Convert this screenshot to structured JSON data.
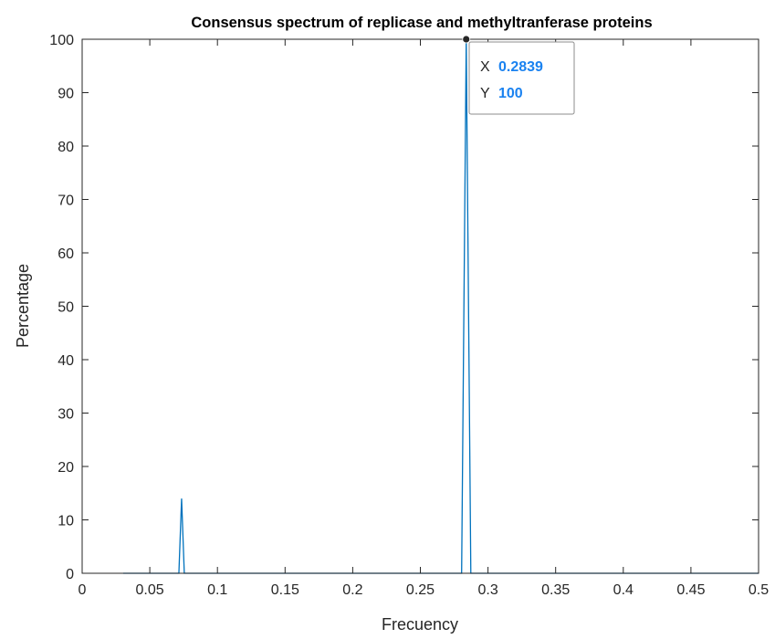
{
  "chart_data": {
    "type": "line",
    "title": "Consensus spectrum of replicase and methyltranferase proteins",
    "xlabel": "Frecuency",
    "ylabel": "Percentage",
    "xlim": [
      0,
      0.5
    ],
    "ylim": [
      0,
      100
    ],
    "xticks": [
      "0",
      "0.05",
      "0.1",
      "0.15",
      "0.2",
      "0.25",
      "0.3",
      "0.35",
      "0.4",
      "0.45",
      "0.5"
    ],
    "yticks": [
      "0",
      "10",
      "20",
      "30",
      "40",
      "50",
      "60",
      "70",
      "80",
      "90",
      "100"
    ],
    "grid": false,
    "series": [
      {
        "color": "#0072bd",
        "x": [
          0.0303,
          0.0715,
          0.0735,
          0.0755,
          0.2805,
          0.2839,
          0.2873,
          0.5
        ],
        "y": [
          0,
          0,
          14,
          0,
          0,
          100,
          0,
          0
        ]
      }
    ],
    "datatip": {
      "x_label": "X",
      "x_value": "0.2839",
      "y_label": "Y",
      "y_value": "100",
      "point": [
        0.2839,
        100
      ]
    }
  }
}
